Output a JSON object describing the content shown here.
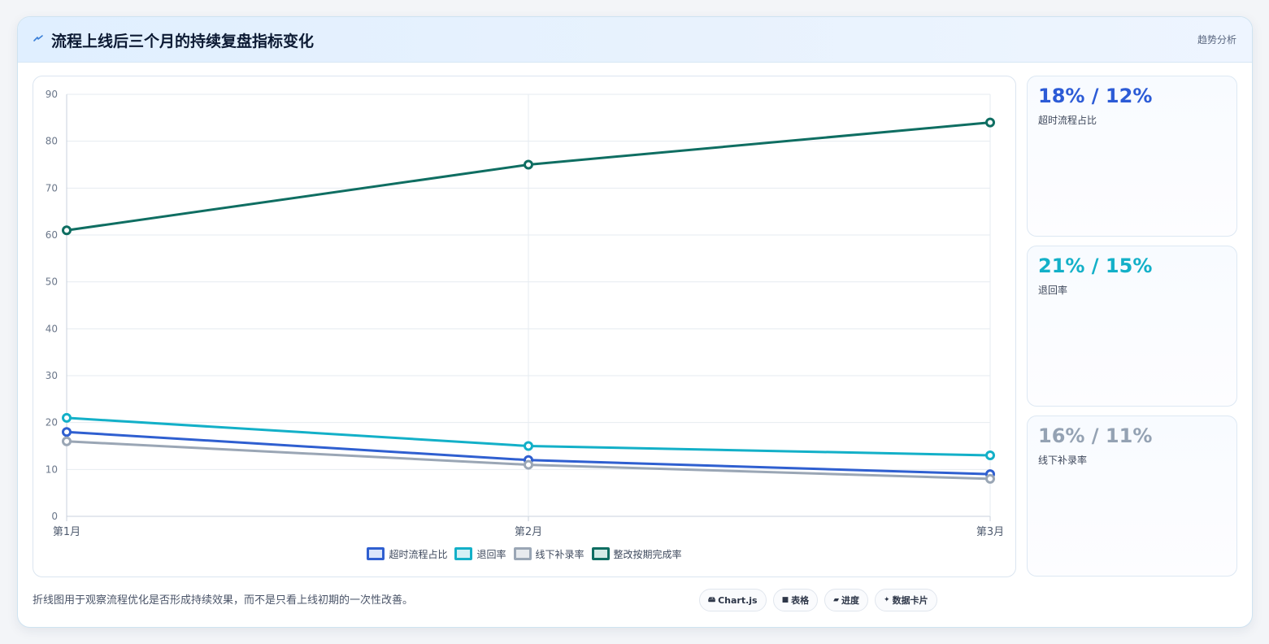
{
  "header": {
    "icon": "lightning-icon",
    "title": "流程上线后三个月的持续复盘指标变化",
    "tag": "趋势分析"
  },
  "colors": {
    "series": [
      "#2f5fd0",
      "#13b0c8",
      "#9aa6b5",
      "#0f6e62"
    ],
    "legend_fill": [
      "#dbe6fb",
      "#d3f0f5",
      "#e7eaee",
      "#d4ebe6"
    ]
  },
  "chart_data": {
    "type": "line",
    "x": [
      "第1月",
      "第2月",
      "第3月"
    ],
    "ylim": [
      0,
      90
    ],
    "yticks": [
      0,
      10,
      20,
      30,
      40,
      50,
      60,
      70,
      80,
      90
    ],
    "grid": true,
    "legend_position": "bottom",
    "series": [
      {
        "name": "超时流程占比",
        "values": [
          18,
          12,
          9
        ]
      },
      {
        "name": "退回率",
        "values": [
          21,
          15,
          13
        ]
      },
      {
        "name": "线下补录率",
        "values": [
          16,
          11,
          8
        ]
      },
      {
        "name": "整改按期完成率",
        "values": [
          61,
          75,
          84
        ]
      }
    ]
  },
  "stats": [
    {
      "value": "18% / 12%",
      "label": "超时流程占比",
      "color": "#2c5bd6"
    },
    {
      "value": "21% / 15%",
      "label": "退回率",
      "color": "#13b0c8"
    },
    {
      "value": "16% / 11%",
      "label": "线下补录率",
      "color": "#94a2b3"
    }
  ],
  "footer": {
    "note": "折线图用于观察流程优化是否形成持续效果，而不是只看上线初期的一次性改善。",
    "pills": [
      {
        "icon": "🖴",
        "icon_name": "chart-icon",
        "label": "Chart.js"
      },
      {
        "icon": "■",
        "icon_name": "table-icon",
        "label": "表格"
      },
      {
        "icon": "▰",
        "icon_name": "progress-icon",
        "label": "进度"
      },
      {
        "icon": "✦",
        "icon_name": "sparkle-icon",
        "label": "数据卡片"
      }
    ]
  }
}
